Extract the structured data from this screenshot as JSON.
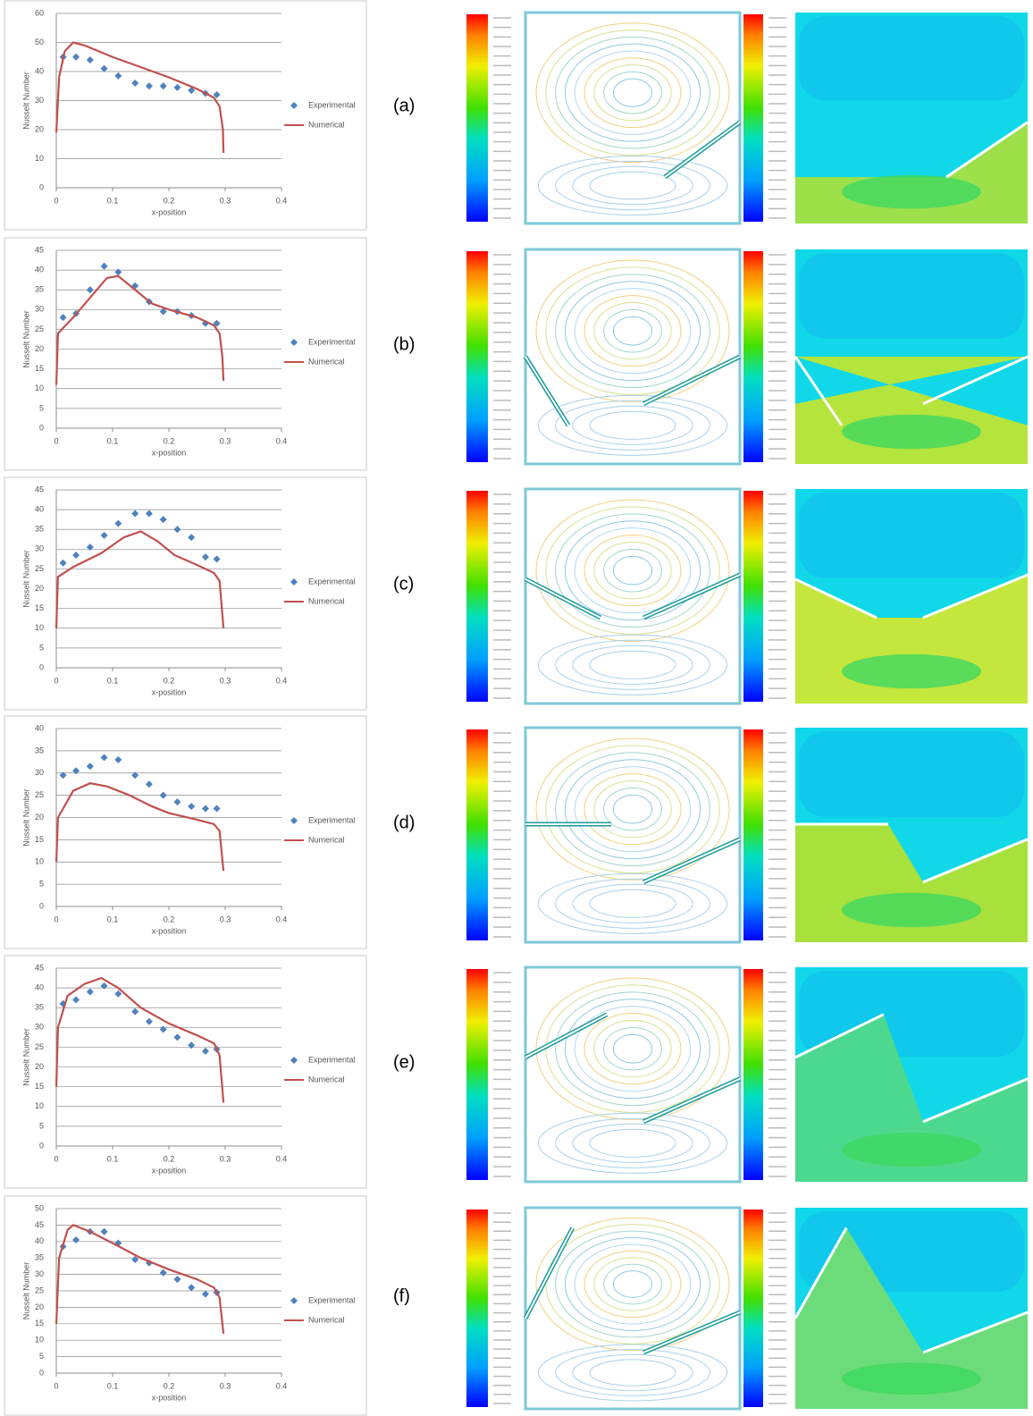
{
  "chart_data": [
    {
      "type": "combo",
      "ylabel": "Nusselt Number",
      "xlabel": "x-position",
      "xlim": [
        0,
        0.4
      ],
      "xticks": [
        0,
        0.1,
        0.2,
        0.3,
        0.4
      ],
      "ylim": [
        0,
        60
      ],
      "yticks": [
        0,
        10,
        20,
        30,
        40,
        50,
        60
      ],
      "grid": true,
      "series": [
        {
          "name": "Experimental",
          "color": "#4f81bd",
          "marker": "diamond",
          "x": [
            0.012,
            0.035,
            0.06,
            0.085,
            0.11,
            0.14,
            0.165,
            0.19,
            0.215,
            0.24,
            0.265,
            0.285
          ],
          "values": [
            45,
            45,
            44,
            41,
            38.5,
            36,
            35,
            35,
            34.5,
            33.5,
            32.5,
            32
          ]
        },
        {
          "name": "Numerical",
          "color": "#c0504d",
          "marker": "line",
          "x": [
            0,
            0.005,
            0.015,
            0.03,
            0.05,
            0.1,
            0.15,
            0.2,
            0.25,
            0.28,
            0.29,
            0.296,
            0.297
          ],
          "values": [
            19,
            38,
            47,
            50,
            49,
            45,
            41.5,
            38,
            34,
            31,
            28,
            20,
            12
          ]
        }
      ]
    },
    {
      "type": "combo",
      "ylabel": "Nusselt Number",
      "xlabel": "x-position",
      "xlim": [
        0,
        0.4
      ],
      "xticks": [
        0,
        0.1,
        0.2,
        0.3,
        0.4
      ],
      "ylim": [
        0,
        45
      ],
      "yticks": [
        0,
        5,
        10,
        15,
        20,
        25,
        30,
        35,
        40,
        45
      ],
      "grid": true,
      "series": [
        {
          "name": "Experimental",
          "color": "#4f81bd",
          "marker": "diamond",
          "x": [
            0.012,
            0.035,
            0.06,
            0.085,
            0.11,
            0.14,
            0.165,
            0.19,
            0.215,
            0.24,
            0.265,
            0.285
          ],
          "values": [
            28,
            29,
            35,
            41,
            39.5,
            36,
            32,
            29.5,
            29.5,
            28.5,
            26.5,
            26.5
          ]
        },
        {
          "name": "Numerical",
          "color": "#c0504d",
          "marker": "line",
          "x": [
            0,
            0.003,
            0.03,
            0.06,
            0.09,
            0.11,
            0.14,
            0.17,
            0.2,
            0.25,
            0.28,
            0.29,
            0.295,
            0.297
          ],
          "values": [
            11,
            24,
            28,
            33,
            38,
            38.5,
            35,
            31.5,
            30,
            28,
            26,
            24,
            18,
            12
          ]
        }
      ]
    },
    {
      "type": "combo",
      "ylabel": "Nusselt Number",
      "xlabel": "x-position",
      "xlim": [
        0,
        0.4
      ],
      "xticks": [
        0,
        0.1,
        0.2,
        0.3,
        0.4
      ],
      "ylim": [
        0,
        45
      ],
      "yticks": [
        0,
        5,
        10,
        15,
        20,
        25,
        30,
        35,
        40,
        45
      ],
      "grid": true,
      "series": [
        {
          "name": "Experimental",
          "color": "#4f81bd",
          "marker": "diamond",
          "x": [
            0.012,
            0.035,
            0.06,
            0.085,
            0.11,
            0.14,
            0.165,
            0.19,
            0.215,
            0.24,
            0.265,
            0.285
          ],
          "values": [
            26.5,
            28.5,
            30.5,
            33.5,
            36.5,
            39,
            39,
            37.5,
            35,
            33,
            28,
            27.5
          ]
        },
        {
          "name": "Numerical",
          "color": "#c0504d",
          "marker": "line",
          "x": [
            0,
            0.003,
            0.03,
            0.08,
            0.12,
            0.15,
            0.18,
            0.21,
            0.25,
            0.28,
            0.29,
            0.297
          ],
          "values": [
            10,
            23,
            25.5,
            29,
            33,
            34.5,
            32,
            28.5,
            26,
            24,
            22,
            10
          ]
        }
      ]
    },
    {
      "type": "combo",
      "ylabel": "Nusselt Number",
      "xlabel": "x-position",
      "xlim": [
        0,
        0.4
      ],
      "xticks": [
        0,
        0.1,
        0.2,
        0.3,
        0.4
      ],
      "ylim": [
        0,
        40
      ],
      "yticks": [
        0,
        5,
        10,
        15,
        20,
        25,
        30,
        35,
        40
      ],
      "grid": true,
      "series": [
        {
          "name": "Experimental",
          "color": "#4f81bd",
          "marker": "diamond",
          "x": [
            0.012,
            0.035,
            0.06,
            0.085,
            0.11,
            0.14,
            0.165,
            0.19,
            0.215,
            0.24,
            0.265,
            0.285
          ],
          "values": [
            29.5,
            30.5,
            31.5,
            33.5,
            33,
            29.5,
            27.5,
            25,
            23.5,
            22.5,
            22,
            22
          ]
        },
        {
          "name": "Numerical",
          "color": "#c0504d",
          "marker": "line",
          "x": [
            0,
            0.003,
            0.03,
            0.06,
            0.09,
            0.13,
            0.17,
            0.2,
            0.25,
            0.28,
            0.29,
            0.297
          ],
          "values": [
            10,
            20,
            26,
            27.7,
            27,
            25,
            22.5,
            21,
            19.5,
            18.5,
            17,
            8
          ]
        }
      ]
    },
    {
      "type": "combo",
      "ylabel": "Nusselt Number",
      "xlabel": "x-position",
      "xlim": [
        0,
        0.4
      ],
      "xticks": [
        0,
        0.1,
        0.2,
        0.3,
        0.4
      ],
      "ylim": [
        0,
        45
      ],
      "yticks": [
        0,
        5,
        10,
        15,
        20,
        25,
        30,
        35,
        40,
        45
      ],
      "grid": true,
      "series": [
        {
          "name": "Experimental",
          "color": "#4f81bd",
          "marker": "diamond",
          "x": [
            0.012,
            0.035,
            0.06,
            0.085,
            0.11,
            0.14,
            0.165,
            0.19,
            0.215,
            0.24,
            0.265,
            0.285
          ],
          "values": [
            36,
            37,
            39,
            40.5,
            38.5,
            34,
            31.5,
            29.5,
            27.5,
            25.5,
            24,
            24.5
          ]
        },
        {
          "name": "Numerical",
          "color": "#c0504d",
          "marker": "line",
          "x": [
            0,
            0.003,
            0.02,
            0.05,
            0.08,
            0.11,
            0.15,
            0.2,
            0.25,
            0.28,
            0.29,
            0.297
          ],
          "values": [
            15,
            30,
            38,
            41,
            42.5,
            40,
            35,
            31,
            28,
            26,
            23,
            11
          ]
        }
      ]
    },
    {
      "type": "combo",
      "ylabel": "Nusselt Number",
      "xlabel": "x-position",
      "xlim": [
        0,
        0.4
      ],
      "xticks": [
        0,
        0.1,
        0.2,
        0.3,
        0.4
      ],
      "ylim": [
        0,
        50
      ],
      "yticks": [
        0,
        5,
        10,
        15,
        20,
        25,
        30,
        35,
        40,
        45,
        50
      ],
      "grid": true,
      "series": [
        {
          "name": "Experimental",
          "color": "#4f81bd",
          "marker": "diamond",
          "x": [
            0.012,
            0.035,
            0.06,
            0.085,
            0.11,
            0.14,
            0.165,
            0.19,
            0.215,
            0.24,
            0.265,
            0.285
          ],
          "values": [
            38.5,
            40.5,
            43,
            43,
            39.5,
            34.5,
            33.5,
            30.5,
            28.5,
            26,
            24,
            24.5
          ]
        },
        {
          "name": "Numerical",
          "color": "#c0504d",
          "marker": "line",
          "x": [
            0,
            0.005,
            0.02,
            0.03,
            0.06,
            0.1,
            0.15,
            0.2,
            0.25,
            0.28,
            0.29,
            0.297
          ],
          "values": [
            15,
            35,
            43.5,
            45,
            43,
            39.5,
            35,
            31.5,
            28.5,
            26,
            23,
            12
          ]
        }
      ]
    }
  ],
  "panel_labels": [
    "(a)",
    "(b)",
    "(c)",
    "(d)",
    "(e)",
    "(f)"
  ]
}
